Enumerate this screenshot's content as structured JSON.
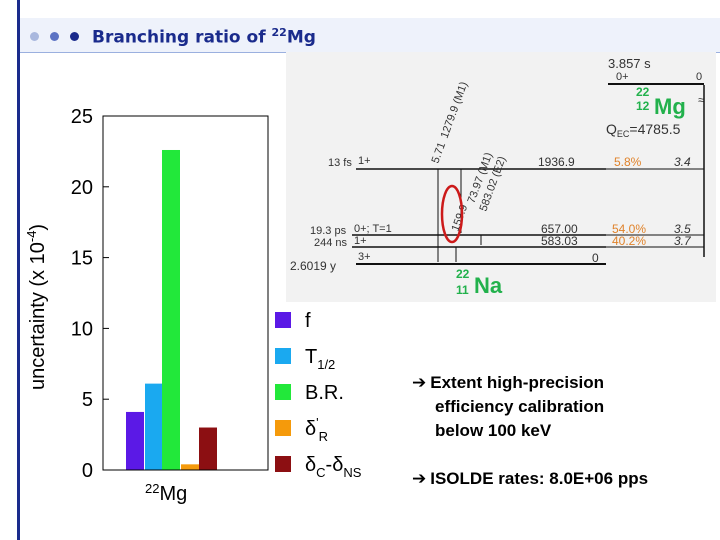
{
  "slide": {
    "title_main": "Branching ratio of ",
    "title_sup": "22",
    "title_tail": "Mg",
    "accent_color": "#1a2b8c",
    "bullet_arrow": "➔",
    "bullet1_lines": [
      "Extent high-precision",
      "efficiency calibration",
      "below 100 keV"
    ],
    "bullet2": "ISOLDE rates:  8.0E+06 pps"
  },
  "chart_data": {
    "type": "bar",
    "ylabel_main": "uncertainty (x 10",
    "ylabel_sup": "-4",
    "ylabel_close": ")",
    "xlabel_sup": "22",
    "xlabel_main": "Mg",
    "ylim": [
      0,
      25
    ],
    "yticks": [
      "0",
      "5",
      "10",
      "15",
      "20",
      "25"
    ],
    "ytick_values": [
      0,
      5,
      10,
      15,
      20,
      25
    ],
    "series": [
      {
        "name": "f",
        "value": 4.1,
        "color": "#5b19e6"
      },
      {
        "name": "T1/2",
        "value": 6.1,
        "color": "#1aa9f0"
      },
      {
        "name": "B.R.",
        "value": 22.6,
        "color": "#22e83a"
      },
      {
        "name": "δ'R",
        "value": 0.4,
        "color": "#f59a0b"
      },
      {
        "name": "δC-δNS",
        "value": 3.0,
        "color": "#8c0f12"
      }
    ],
    "legend": [
      {
        "base": "f",
        "sub": "",
        "sup": "",
        "color": "#5b19e6"
      },
      {
        "base": "T",
        "sub": "1/2",
        "sup": "",
        "color": "#1aa9f0"
      },
      {
        "base": "B.R.",
        "sub": "",
        "sup": "",
        "color": "#22e83a"
      },
      {
        "base": "δ",
        "sub": "R",
        "sup": "'",
        "color": "#f59a0b"
      },
      {
        "base": "δ",
        "sub": "C",
        "mid": "-δ",
        "sub2": "NS",
        "color": "#8c0f12"
      }
    ]
  },
  "decay_scheme": {
    "half_life": "3.857 s",
    "parent_spin": "0+",
    "parent_energy": "0",
    "parent_mass": "22",
    "parent_z": "12",
    "parent_symbol": "Mg",
    "approx": "≈",
    "q_label": "Q",
    "q_sub": "EC",
    "q_value": "=4785.5",
    "daughter_mass": "22",
    "daughter_z": "11",
    "daughter_symbol": "Na",
    "levels": [
      {
        "lifetime": "13 fs",
        "spin": "1+",
        "energy": "1936.9",
        "branch": "5.8%",
        "logft": "3.4"
      },
      {
        "lifetime": "19.3 ps",
        "spin": "0+; T=1",
        "energy": "657.00",
        "branch": "54.0%",
        "logft": "3.5"
      },
      {
        "lifetime": "244 ns",
        "spin": "1+",
        "energy": "583.03",
        "branch": "40.2%",
        "logft": "3.7"
      },
      {
        "lifetime": "2.6019 y",
        "spin": "3+",
        "energy": "0",
        "branch": "",
        "logft": ""
      }
    ],
    "gammas": [
      {
        "label": "5.71",
        "tail": "1279.9 (M1)"
      },
      {
        "label": "73.97 (M1)",
        "tail": "583.02 (E2)"
      },
      {
        "label": "159.9",
        "tail": "1353.9 (M1)"
      },
      {
        "label": "0.0"
      }
    ]
  }
}
